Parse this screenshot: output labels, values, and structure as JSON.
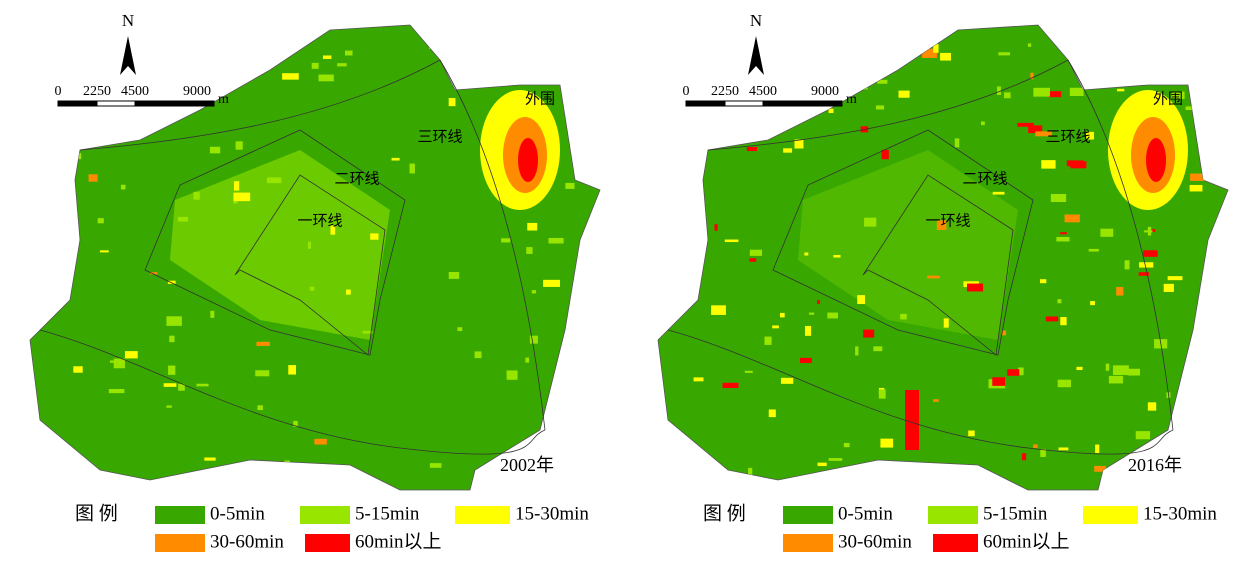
{
  "panels": [
    {
      "year": "2002年",
      "north": "N",
      "scale": {
        "ticks": [
          "0",
          "2250",
          "4500",
          "9000"
        ],
        "unit": "m"
      },
      "rings": [
        "一环线",
        "二环线",
        "三环线",
        "外围"
      ],
      "legend": {
        "title": "图 例",
        "items": [
          {
            "label": "0-5min",
            "color": "#38a800"
          },
          {
            "label": "5-15min",
            "color": "#98e600"
          },
          {
            "label": "15-30min",
            "color": "#ffff00"
          },
          {
            "label": "30-60min",
            "color": "#ff8c00"
          },
          {
            "label": "60min以上",
            "color": "#ff0000"
          }
        ]
      }
    },
    {
      "year": "2016年",
      "north": "N",
      "scale": {
        "ticks": [
          "0",
          "2250",
          "4500",
          "9000"
        ],
        "unit": "m"
      },
      "rings": [
        "一环线",
        "二环线",
        "三环线",
        "外围"
      ],
      "legend": {
        "title": "图 例",
        "items": [
          {
            "label": "0-5min",
            "color": "#38a800"
          },
          {
            "label": "5-15min",
            "color": "#98e600"
          },
          {
            "label": "15-30min",
            "color": "#ffff00"
          },
          {
            "label": "30-60min",
            "color": "#ff8c00"
          },
          {
            "label": "60min以上",
            "color": "#ff0000"
          }
        ]
      }
    }
  ]
}
